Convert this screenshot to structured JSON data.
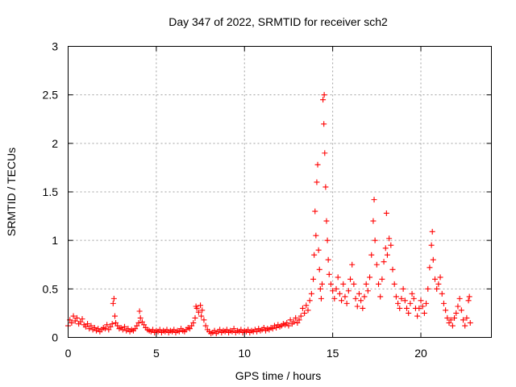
{
  "chart_data": {
    "type": "scatter",
    "title": "Day 347 of 2022, SRMTID for receiver sch2",
    "xlabel": "GPS time / hours",
    "ylabel": "SRMTID / TECUs",
    "xlim": [
      0,
      24
    ],
    "ylim": [
      0,
      3
    ],
    "xticks": [
      0,
      5,
      10,
      15,
      20
    ],
    "xtick_labels": [
      "0",
      "5",
      "10",
      "15",
      "20"
    ],
    "yticks": [
      0,
      0.5,
      1,
      1.5,
      2,
      2.5,
      3
    ],
    "ytick_labels": [
      "0",
      "0.5",
      "1",
      "1.5",
      "2",
      "2.5",
      "3"
    ],
    "grid": true,
    "legend": "none",
    "marker": "plus",
    "series": [
      {
        "name": "sch2",
        "color": "#ff0000",
        "points": [
          [
            0.0,
            0.12
          ],
          [
            0.1,
            0.18
          ],
          [
            0.2,
            0.15
          ],
          [
            0.3,
            0.22
          ],
          [
            0.4,
            0.17
          ],
          [
            0.5,
            0.2
          ],
          [
            0.6,
            0.14
          ],
          [
            0.7,
            0.16
          ],
          [
            0.8,
            0.19
          ],
          [
            0.9,
            0.13
          ],
          [
            1.0,
            0.11
          ],
          [
            1.1,
            0.14
          ],
          [
            1.2,
            0.09
          ],
          [
            1.3,
            0.12
          ],
          [
            1.4,
            0.08
          ],
          [
            1.5,
            0.1
          ],
          [
            1.6,
            0.07
          ],
          [
            1.7,
            0.09
          ],
          [
            1.8,
            0.06
          ],
          [
            1.9,
            0.08
          ],
          [
            2.0,
            0.1
          ],
          [
            2.1,
            0.09
          ],
          [
            2.2,
            0.13
          ],
          [
            2.3,
            0.08
          ],
          [
            2.4,
            0.11
          ],
          [
            2.5,
            0.14
          ],
          [
            2.55,
            0.35
          ],
          [
            2.6,
            0.4
          ],
          [
            2.65,
            0.22
          ],
          [
            2.7,
            0.15
          ],
          [
            2.8,
            0.12
          ],
          [
            2.9,
            0.09
          ],
          [
            3.0,
            0.1
          ],
          [
            3.1,
            0.08
          ],
          [
            3.2,
            0.11
          ],
          [
            3.3,
            0.07
          ],
          [
            3.4,
            0.09
          ],
          [
            3.5,
            0.06
          ],
          [
            3.6,
            0.08
          ],
          [
            3.7,
            0.07
          ],
          [
            3.8,
            0.09
          ],
          [
            3.9,
            0.12
          ],
          [
            4.0,
            0.15
          ],
          [
            4.05,
            0.27
          ],
          [
            4.1,
            0.2
          ],
          [
            4.2,
            0.16
          ],
          [
            4.3,
            0.13
          ],
          [
            4.4,
            0.1
          ],
          [
            4.5,
            0.08
          ],
          [
            4.6,
            0.07
          ],
          [
            4.7,
            0.06
          ],
          [
            4.8,
            0.08
          ],
          [
            4.9,
            0.05
          ],
          [
            5.0,
            0.07
          ],
          [
            5.1,
            0.06
          ],
          [
            5.2,
            0.08
          ],
          [
            5.3,
            0.05
          ],
          [
            5.4,
            0.07
          ],
          [
            5.5,
            0.06
          ],
          [
            5.6,
            0.08
          ],
          [
            5.7,
            0.05
          ],
          [
            5.8,
            0.07
          ],
          [
            5.9,
            0.06
          ],
          [
            6.0,
            0.08
          ],
          [
            6.1,
            0.05
          ],
          [
            6.2,
            0.07
          ],
          [
            6.3,
            0.06
          ],
          [
            6.4,
            0.09
          ],
          [
            6.5,
            0.07
          ],
          [
            6.6,
            0.06
          ],
          [
            6.7,
            0.08
          ],
          [
            6.8,
            0.1
          ],
          [
            6.9,
            0.09
          ],
          [
            7.0,
            0.12
          ],
          [
            7.1,
            0.15
          ],
          [
            7.2,
            0.2
          ],
          [
            7.25,
            0.32
          ],
          [
            7.3,
            0.3
          ],
          [
            7.4,
            0.26
          ],
          [
            7.5,
            0.33
          ],
          [
            7.55,
            0.22
          ],
          [
            7.6,
            0.28
          ],
          [
            7.7,
            0.18
          ],
          [
            7.8,
            0.12
          ],
          [
            7.9,
            0.08
          ],
          [
            8.0,
            0.06
          ],
          [
            8.1,
            0.04
          ],
          [
            8.2,
            0.05
          ],
          [
            8.3,
            0.07
          ],
          [
            8.4,
            0.04
          ],
          [
            8.5,
            0.06
          ],
          [
            8.6,
            0.08
          ],
          [
            8.7,
            0.05
          ],
          [
            8.8,
            0.07
          ],
          [
            8.9,
            0.06
          ],
          [
            9.0,
            0.08
          ],
          [
            9.1,
            0.05
          ],
          [
            9.2,
            0.07
          ],
          [
            9.3,
            0.06
          ],
          [
            9.4,
            0.09
          ],
          [
            9.5,
            0.05
          ],
          [
            9.6,
            0.07
          ],
          [
            9.7,
            0.06
          ],
          [
            9.8,
            0.08
          ],
          [
            9.9,
            0.05
          ],
          [
            10.0,
            0.07
          ],
          [
            10.1,
            0.06
          ],
          [
            10.2,
            0.08
          ],
          [
            10.3,
            0.05
          ],
          [
            10.4,
            0.07
          ],
          [
            10.5,
            0.06
          ],
          [
            10.6,
            0.08
          ],
          [
            10.7,
            0.06
          ],
          [
            10.8,
            0.09
          ],
          [
            10.9,
            0.07
          ],
          [
            11.0,
            0.08
          ],
          [
            11.1,
            0.1
          ],
          [
            11.2,
            0.07
          ],
          [
            11.3,
            0.09
          ],
          [
            11.4,
            0.08
          ],
          [
            11.5,
            0.1
          ],
          [
            11.6,
            0.09
          ],
          [
            11.7,
            0.12
          ],
          [
            11.8,
            0.1
          ],
          [
            11.9,
            0.13
          ],
          [
            12.0,
            0.11
          ],
          [
            12.1,
            0.12
          ],
          [
            12.2,
            0.14
          ],
          [
            12.3,
            0.13
          ],
          [
            12.4,
            0.15
          ],
          [
            12.5,
            0.12
          ],
          [
            12.6,
            0.18
          ],
          [
            12.7,
            0.14
          ],
          [
            12.8,
            0.16
          ],
          [
            12.9,
            0.2
          ],
          [
            13.0,
            0.15
          ],
          [
            13.1,
            0.18
          ],
          [
            13.2,
            0.22
          ],
          [
            13.3,
            0.3
          ],
          [
            13.4,
            0.25
          ],
          [
            13.5,
            0.33
          ],
          [
            13.6,
            0.28
          ],
          [
            13.7,
            0.38
          ],
          [
            13.8,
            0.45
          ],
          [
            13.9,
            0.6
          ],
          [
            13.95,
            0.85
          ],
          [
            14.0,
            1.3
          ],
          [
            14.05,
            1.05
          ],
          [
            14.1,
            1.6
          ],
          [
            14.15,
            1.78
          ],
          [
            14.2,
            0.9
          ],
          [
            14.25,
            0.7
          ],
          [
            14.3,
            0.5
          ],
          [
            14.35,
            0.4
          ],
          [
            14.4,
            0.55
          ],
          [
            14.45,
            2.45
          ],
          [
            14.5,
            2.2
          ],
          [
            14.52,
            2.5
          ],
          [
            14.55,
            1.9
          ],
          [
            14.6,
            1.55
          ],
          [
            14.65,
            1.2
          ],
          [
            14.7,
            1.0
          ],
          [
            14.75,
            0.8
          ],
          [
            14.8,
            0.65
          ],
          [
            14.9,
            0.55
          ],
          [
            15.0,
            0.48
          ],
          [
            15.1,
            0.4
          ],
          [
            15.2,
            0.5
          ],
          [
            15.3,
            0.62
          ],
          [
            15.4,
            0.45
          ],
          [
            15.5,
            0.38
          ],
          [
            15.6,
            0.55
          ],
          [
            15.7,
            0.42
          ],
          [
            15.8,
            0.35
          ],
          [
            15.9,
            0.48
          ],
          [
            16.0,
            0.6
          ],
          [
            16.1,
            0.75
          ],
          [
            16.2,
            0.55
          ],
          [
            16.3,
            0.4
          ],
          [
            16.4,
            0.32
          ],
          [
            16.5,
            0.45
          ],
          [
            16.6,
            0.38
          ],
          [
            16.7,
            0.3
          ],
          [
            16.8,
            0.42
          ],
          [
            16.9,
            0.55
          ],
          [
            17.0,
            0.48
          ],
          [
            17.1,
            0.62
          ],
          [
            17.2,
            0.85
          ],
          [
            17.3,
            1.2
          ],
          [
            17.35,
            1.42
          ],
          [
            17.4,
            1.0
          ],
          [
            17.5,
            0.75
          ],
          [
            17.6,
            0.55
          ],
          [
            17.7,
            0.42
          ],
          [
            17.8,
            0.6
          ],
          [
            17.9,
            0.78
          ],
          [
            18.0,
            0.92
          ],
          [
            18.05,
            1.28
          ],
          [
            18.1,
            0.85
          ],
          [
            18.2,
            1.02
          ],
          [
            18.3,
            0.95
          ],
          [
            18.4,
            0.7
          ],
          [
            18.5,
            0.55
          ],
          [
            18.6,
            0.42
          ],
          [
            18.7,
            0.35
          ],
          [
            18.8,
            0.3
          ],
          [
            18.9,
            0.4
          ],
          [
            19.0,
            0.5
          ],
          [
            19.1,
            0.38
          ],
          [
            19.2,
            0.3
          ],
          [
            19.3,
            0.25
          ],
          [
            19.4,
            0.35
          ],
          [
            19.5,
            0.45
          ],
          [
            19.6,
            0.4
          ],
          [
            19.7,
            0.3
          ],
          [
            19.8,
            0.22
          ],
          [
            19.9,
            0.3
          ],
          [
            20.0,
            0.38
          ],
          [
            20.1,
            0.32
          ],
          [
            20.2,
            0.25
          ],
          [
            20.3,
            0.35
          ],
          [
            20.4,
            0.5
          ],
          [
            20.5,
            0.72
          ],
          [
            20.6,
            0.95
          ],
          [
            20.65,
            1.09
          ],
          [
            20.7,
            0.8
          ],
          [
            20.8,
            0.6
          ],
          [
            20.9,
            0.5
          ],
          [
            21.0,
            0.55
          ],
          [
            21.1,
            0.62
          ],
          [
            21.2,
            0.45
          ],
          [
            21.3,
            0.35
          ],
          [
            21.4,
            0.28
          ],
          [
            21.5,
            0.2
          ],
          [
            21.6,
            0.15
          ],
          [
            21.7,
            0.18
          ],
          [
            21.8,
            0.12
          ],
          [
            21.9,
            0.2
          ],
          [
            22.0,
            0.25
          ],
          [
            22.1,
            0.32
          ],
          [
            22.2,
            0.4
          ],
          [
            22.3,
            0.28
          ],
          [
            22.4,
            0.18
          ],
          [
            22.5,
            0.12
          ],
          [
            22.6,
            0.2
          ],
          [
            22.7,
            0.38
          ],
          [
            22.75,
            0.42
          ],
          [
            22.8,
            0.15
          ]
        ]
      }
    ]
  }
}
